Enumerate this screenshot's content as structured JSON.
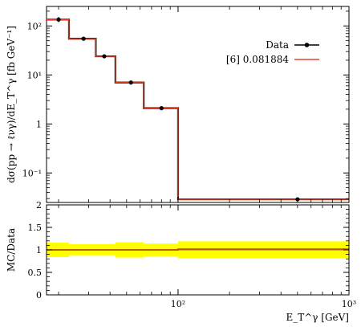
{
  "chart_data": [
    {
      "type": "line",
      "panel": "main",
      "x_scale": "log",
      "y_scale": "log",
      "xlim": [
        17,
        1000
      ],
      "ylim": [
        0.025,
        250
      ],
      "ylabel": "dσ(pp → ℓνγ)/dE_T^γ [fb GeV⁻¹]",
      "y_ticks": [
        {
          "value": 100,
          "label": "10²"
        },
        {
          "value": 10,
          "label": "10¹"
        },
        {
          "value": 1,
          "label": "1"
        },
        {
          "value": 0.1,
          "label": "10⁻¹"
        }
      ],
      "legend_position": "top-right",
      "series": [
        {
          "name": "Data",
          "color": "#000000",
          "x": [
            20,
            28,
            37,
            53,
            80,
            500
          ],
          "y": [
            135,
            55,
            24,
            7,
            2.1,
            0.029
          ],
          "y_err_low": [
            0.15,
            0.1,
            0.1,
            0.1,
            0.1,
            0.1
          ],
          "y_err_high": [
            0.15,
            0.1,
            0.1,
            0.1,
            0.1,
            0.1
          ]
        },
        {
          "name": "[6] 0.081884",
          "color": "#e8432a",
          "step_edges": [
            17,
            23,
            33,
            43,
            63,
            100,
            1000
          ],
          "values": [
            135,
            55,
            24,
            7,
            2.1,
            0.029
          ]
        }
      ]
    },
    {
      "type": "area",
      "panel": "ratio",
      "x_scale": "log",
      "xlim": [
        17,
        1000
      ],
      "ylim": [
        0,
        2
      ],
      "ylabel": "MC/Data",
      "xlabel": "E_T^γ [GeV]",
      "x_ticks": [
        {
          "value": 100,
          "label": "10²"
        },
        {
          "value": 1000,
          "label": "10³"
        }
      ],
      "y_ticks": [
        {
          "value": 0,
          "label": "0"
        },
        {
          "value": 0.5,
          "label": "0.5"
        },
        {
          "value": 1,
          "label": "1"
        },
        {
          "value": 1.5,
          "label": "1.5"
        },
        {
          "value": 2,
          "label": "2"
        }
      ],
      "band_color": "#ffff00",
      "band_edges": [
        17,
        23,
        33,
        43,
        63,
        100,
        1000
      ],
      "band_low": [
        0.84,
        0.87,
        0.87,
        0.83,
        0.86,
        0.82
      ],
      "band_high": [
        1.16,
        1.13,
        1.13,
        1.17,
        1.14,
        1.19
      ],
      "line_color": "#e8432a",
      "ratio_values": [
        1.0,
        1.0,
        1.0,
        1.0,
        1.0,
        1.02
      ]
    }
  ],
  "legend": {
    "data_label": "Data",
    "model_label": "[6] 0.081884"
  }
}
